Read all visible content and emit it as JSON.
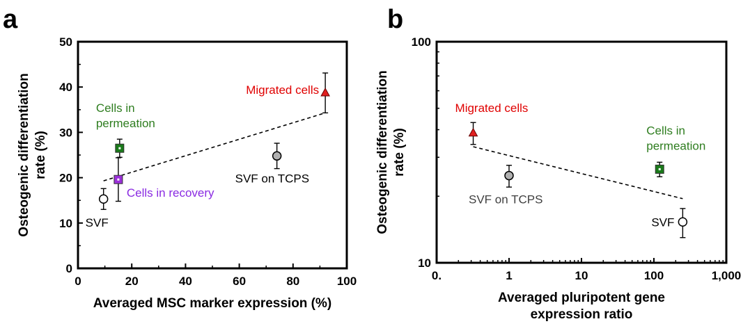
{
  "chart_data": [
    {
      "panel": "a",
      "type": "scatter",
      "xlabel": "Averaged MSC marker expression (%)",
      "ylabel": [
        "Osteogenic differentiation",
        "rate (%)"
      ],
      "xlim": [
        0,
        100
      ],
      "ylim": [
        0,
        50
      ],
      "xticks": [
        0,
        20,
        40,
        60,
        80,
        100
      ],
      "yticks": [
        0,
        10,
        20,
        30,
        40,
        50
      ],
      "xtick_labels": [
        "0",
        "20",
        "40",
        "60",
        "80",
        "100"
      ],
      "ytick_labels": [
        "0",
        "10",
        "20",
        "30",
        "40",
        "50"
      ],
      "points": [
        {
          "label": [
            "SVF"
          ],
          "x": 9.5,
          "y": 15.3,
          "err_low": 2.3,
          "err_high": 2.3,
          "marker": "circle-open",
          "color": "#000000",
          "label_color": "#000000",
          "label_anchor": "below-left"
        },
        {
          "label": [
            "Cells in",
            "permeation"
          ],
          "x": 15.5,
          "y": 26.5,
          "err_low": 2.0,
          "err_high": 2.0,
          "marker": "square",
          "color": "#1a7a1a",
          "label_color": "#2e7d1f",
          "label_anchor": "above-left"
        },
        {
          "label": [
            "Cells in recovery"
          ],
          "x": 15.0,
          "y": 19.6,
          "err_low": 4.8,
          "err_high": 4.8,
          "marker": "square",
          "color": "#9b30d9",
          "label_color": "#8a2be2",
          "label_anchor": "right"
        },
        {
          "label": [
            "SVF on TCPS"
          ],
          "x": 74,
          "y": 24.8,
          "err_low": 2.8,
          "err_high": 2.8,
          "marker": "circle-filled",
          "color": "#b0b0b0",
          "label_color": "#000000",
          "label_anchor": "below"
        },
        {
          "label": [
            "Migrated cells"
          ],
          "x": 92,
          "y": 38.8,
          "err_low": 4.5,
          "err_high": 4.3,
          "marker": "triangle",
          "color": "#e02020",
          "label_color": "#e00000",
          "label_anchor": "left"
        }
      ],
      "trendline": {
        "style": "dashed",
        "x": [
          9.5,
          92
        ],
        "y": [
          19.3,
          34.3
        ]
      }
    },
    {
      "panel": "b",
      "type": "scatter",
      "xscale": "log",
      "yscale": "log",
      "xlabel": [
        "Averaged pluripotent gene",
        "expression ratio"
      ],
      "ylabel": [
        "Osteogenic differentiation",
        "rate (%)"
      ],
      "xlim": [
        0.1,
        1000
      ],
      "ylim": [
        10,
        100
      ],
      "xticks": [
        0.1,
        1,
        10,
        100,
        1000
      ],
      "xtick_labels": [
        "0.",
        "1",
        "10",
        "100",
        "1,000"
      ],
      "yticks": [
        10,
        100
      ],
      "ytick_labels": [
        "10",
        "100"
      ],
      "points": [
        {
          "label": [
            "Migrated cells"
          ],
          "x": 0.32,
          "y": 38.8,
          "err_low": 4.5,
          "err_high": 4.3,
          "marker": "triangle",
          "color": "#e02020",
          "label_color": "#e00000",
          "label_anchor": "above"
        },
        {
          "label": [
            "SVF on TCPS"
          ],
          "x": 1.0,
          "y": 24.8,
          "err_low": 2.8,
          "err_high": 2.8,
          "marker": "circle-filled",
          "color": "#b0b0b0",
          "label_color": "#404040",
          "label_anchor": "below"
        },
        {
          "label": [
            "Cells in",
            "permeation"
          ],
          "x": 120,
          "y": 26.5,
          "err_low": 2.0,
          "err_high": 2.0,
          "marker": "square",
          "color": "#1a7a1a",
          "label_color": "#2e7d1f",
          "label_anchor": "above"
        },
        {
          "label": [
            "SVF"
          ],
          "x": 250,
          "y": 15.3,
          "err_low": 2.3,
          "err_high": 2.3,
          "marker": "circle-open",
          "color": "#000000",
          "label_color": "#000000",
          "label_anchor": "left"
        }
      ],
      "trendline": {
        "style": "dashed",
        "x": [
          0.32,
          250
        ],
        "y": [
          33.5,
          19.5
        ]
      }
    }
  ],
  "panel_letters": [
    "a",
    "b"
  ]
}
